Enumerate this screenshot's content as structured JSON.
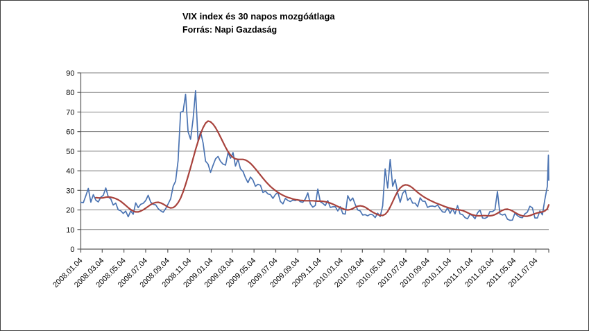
{
  "chart": {
    "title": "VIX index és 30 napos mozgóátlaga",
    "subtitle": "Forrás: Napi Gazdaság"
  },
  "colors": {
    "vix_line": "#4a73b2",
    "ma_line": "#a8423c",
    "gridline": "#7f7f7f",
    "axis": "#595959",
    "background": "#ffffff",
    "label_text": "#000000"
  },
  "chart_data": {
    "type": "line",
    "title": "VIX index és 30 napos mozgóátlaga",
    "subtitle": "Forrás: Napi Gazdaság",
    "xlabel": "",
    "ylabel": "",
    "ylim": [
      0,
      90
    ],
    "y_ticks": [
      0,
      10,
      20,
      30,
      40,
      50,
      60,
      70,
      80,
      90
    ],
    "grid": "horizontal-only",
    "legend": "none",
    "x_start": "2008-01-04",
    "x_end": "2011-08-09",
    "x_tick_labels": [
      "2008.01.04",
      "2008.03.04",
      "2008.05.04",
      "2008.07.04",
      "2008.09.04",
      "2008.11.04",
      "2009.01.04",
      "2009.03.04",
      "2009.05.04",
      "2009.07.04",
      "2009.09.04",
      "2009.11.04",
      "2010.01.04",
      "2010.03.04",
      "2010.05.04",
      "2010.07.04",
      "2010.09.04",
      "2010.11.04",
      "2011.01.04",
      "2011.03.04",
      "2011.05.04",
      "2011.07.04"
    ],
    "series": [
      {
        "name": "VIX index",
        "color": "#4a73b2",
        "stroke_width": 1.7,
        "start_date": "2008-01-04",
        "interval_days": 7,
        "values": [
          23.9,
          23.7,
          27.2,
          31.0,
          24.0,
          27.8,
          25.0,
          24.1,
          26.5,
          27.5,
          31.2,
          26.6,
          25.6,
          22.5,
          23.5,
          20.1,
          19.6,
          18.2,
          19.4,
          16.5,
          19.5,
          17.8,
          23.6,
          21.2,
          22.9,
          23.4,
          24.8,
          27.5,
          24.0,
          22.9,
          22.6,
          20.7,
          19.6,
          18.8,
          20.7,
          23.1,
          25.7,
          32.1,
          34.7,
          45.1,
          69.9,
          70.3,
          79.1,
          59.9,
          56.1,
          66.3,
          80.9,
          55.3,
          59.9,
          54.3,
          44.9,
          43.4,
          39.2,
          42.8,
          46.1,
          47.3,
          44.8,
          43.4,
          42.9,
          49.3,
          46.4,
          49.3,
          42.4,
          45.9,
          41.0,
          39.7,
          36.5,
          33.9,
          36.8,
          35.3,
          32.1,
          33.1,
          32.6,
          28.9,
          29.6,
          28.2,
          27.8,
          25.9,
          27.9,
          29.0,
          24.3,
          23.1,
          25.9,
          24.8,
          24.3,
          25.0,
          24.8,
          25.3,
          24.2,
          23.9,
          25.6,
          28.7,
          23.1,
          21.4,
          22.3,
          30.7,
          24.2,
          23.4,
          22.2,
          24.8,
          21.3,
          21.6,
          21.7,
          19.5,
          21.7,
          18.1,
          17.9,
          27.3,
          24.6,
          26.1,
          22.7,
          20.0,
          19.5,
          17.4,
          17.6,
          17.0,
          17.8,
          17.5,
          16.1,
          18.4,
          16.6,
          22.1,
          41.0,
          31.2,
          45.8,
          32.1,
          35.5,
          28.8,
          23.9,
          28.5,
          30.1,
          24.9,
          26.2,
          23.5,
          23.5,
          21.7,
          26.2,
          24.5,
          24.4,
          21.3,
          21.9,
          22.0,
          21.7,
          22.5,
          20.7,
          19.0,
          18.8,
          21.2,
          18.3,
          20.6,
          18.0,
          22.2,
          18.0,
          17.6,
          16.1,
          15.5,
          17.8,
          17.1,
          15.5,
          18.5,
          20.0,
          15.9,
          15.7,
          16.4,
          19.2,
          19.1,
          20.1,
          29.4,
          18.0,
          17.4,
          17.9,
          15.3,
          14.7,
          14.8,
          18.4,
          17.1,
          16.3,
          16.0,
          18.0,
          18.9,
          21.9,
          21.1,
          15.9,
          15.9,
          19.5,
          17.5,
          25.2,
          32.0
        ],
        "extra_points": [
          {
            "date": "2011-08-08",
            "value": 48.0
          },
          {
            "date": "2011-08-09",
            "value": 35.1
          }
        ]
      },
      {
        "name": "30 napos mozgóátlag",
        "color": "#a8423c",
        "stroke_width": 2.2,
        "start_date": "2008-02-15",
        "interval_days": 7,
        "values": [
          26.3,
          26.2,
          26.1,
          26.2,
          26.5,
          26.6,
          26.5,
          26.2,
          25.8,
          25.2,
          24.4,
          23.4,
          22.3,
          21.2,
          20.2,
          19.4,
          19.0,
          19.0,
          19.4,
          20.1,
          20.9,
          21.8,
          22.7,
          23.4,
          23.8,
          23.9,
          23.6,
          23.0,
          22.2,
          21.4,
          21.0,
          21.2,
          22.1,
          23.7,
          26.0,
          29.2,
          33.0,
          37.2,
          41.6,
          46.2,
          50.8,
          55.0,
          58.8,
          62.0,
          64.3,
          65.4,
          65.0,
          63.8,
          62.0,
          59.7,
          57.2,
          54.6,
          52.0,
          49.8,
          48.0,
          46.8,
          46.1,
          45.8,
          45.8,
          45.8,
          45.5,
          44.8,
          43.8,
          42.5,
          41.0,
          39.4,
          37.8,
          36.2,
          34.7,
          33.3,
          32.0,
          30.9,
          29.9,
          29.0,
          28.2,
          27.5,
          26.9,
          26.4,
          26.0,
          25.6,
          25.3,
          25.1,
          24.9,
          24.8,
          24.7,
          24.7,
          24.7,
          24.7,
          24.6,
          24.5,
          24.5,
          24.4,
          24.2,
          23.9,
          23.5,
          23.0,
          22.4,
          21.8,
          21.2,
          20.7,
          20.2,
          20.0,
          20.2,
          20.7,
          21.4,
          21.9,
          22.1,
          21.9,
          21.4,
          20.6,
          19.7,
          18.9,
          18.2,
          17.6,
          17.3,
          17.2,
          17.8,
          19.2,
          21.5,
          24.2,
          27.0,
          29.4,
          31.2,
          32.3,
          32.8,
          32.7,
          32.1,
          31.2,
          30.1,
          29.0,
          28.0,
          27.1,
          26.3,
          25.6,
          24.9,
          24.3,
          23.7,
          23.2,
          22.7,
          22.2,
          21.7,
          21.3,
          20.9,
          20.6,
          20.3,
          20.1,
          20.0,
          19.7,
          19.2,
          18.6,
          18.0,
          17.5,
          17.2,
          17.0,
          17.0,
          17.1,
          17.1,
          17.0,
          17.0,
          17.2,
          17.6,
          18.3,
          19.1,
          19.8,
          20.3,
          20.4,
          20.1,
          19.5,
          18.7,
          18.0,
          17.4,
          17.0,
          16.8,
          16.8,
          17.1,
          17.6,
          18.1,
          18.5,
          18.8,
          19.0,
          19.5,
          20.6
        ],
        "extra_points": [
          {
            "date": "2011-08-09",
            "value": 22.6
          }
        ]
      }
    ]
  }
}
